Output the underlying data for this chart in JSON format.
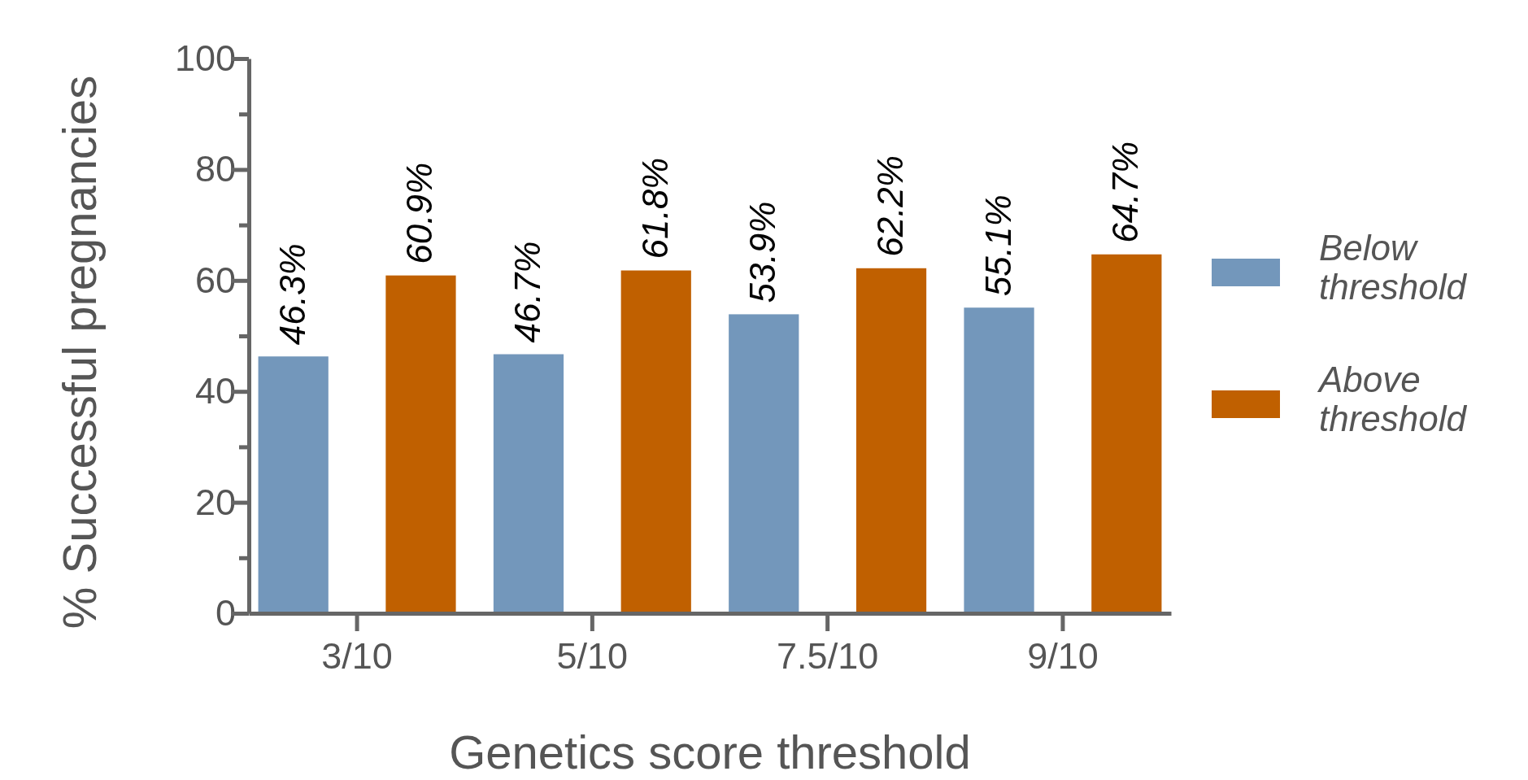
{
  "chart_data": {
    "type": "bar",
    "xlabel": "Genetics score threshold",
    "ylabel": "% Successful pregnancies",
    "categories": [
      "3/10",
      "5/10",
      "7.5/10",
      "9/10"
    ],
    "series": [
      {
        "name": "Below threshold",
        "color": "#7397bb",
        "values": [
          46.3,
          46.7,
          53.9,
          55.1
        ],
        "value_labels": [
          "46.3%",
          "46.7%",
          "53.9%",
          "55.1%"
        ]
      },
      {
        "name": "Above threshold",
        "color": "#c06000",
        "values": [
          60.9,
          61.8,
          62.2,
          64.7
        ],
        "value_labels": [
          "60.9%",
          "61.8%",
          "62.2%",
          "64.7%"
        ]
      }
    ],
    "ylim": [
      0,
      100
    ],
    "yticks": [
      0,
      {
        "value": 10,
        "label": null
      },
      20,
      {
        "value": 30,
        "label": null
      },
      40,
      {
        "value": 50,
        "label": null
      },
      60,
      {
        "value": 70,
        "label": null
      },
      80,
      {
        "value": 90,
        "label": null
      },
      100
    ],
    "grid": false,
    "legend": "right"
  }
}
